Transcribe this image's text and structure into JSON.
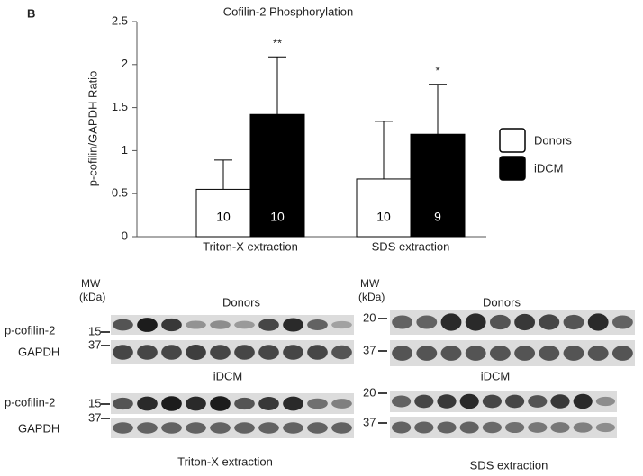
{
  "panel_label": "B",
  "chart_data": {
    "type": "bar",
    "title": "Cofilin-2 Phosphorylation",
    "y_label": "p-cofilin/GAPDH Ratio",
    "categories": [
      "Triton-X extraction",
      "SDS extraction"
    ],
    "series": [
      {
        "name": "Donors",
        "color": "#ffffff",
        "values": [
          0.55,
          0.67
        ],
        "errors": [
          0.34,
          0.67
        ],
        "sample_sizes": [
          10,
          10
        ]
      },
      {
        "name": "iDCM",
        "color": "#000000",
        "values": [
          1.42,
          1.19
        ],
        "errors": [
          0.67,
          0.58
        ],
        "sample_sizes": [
          10,
          9
        ],
        "significance": [
          "**",
          "*"
        ]
      }
    ],
    "ylim": [
      0,
      2.5
    ],
    "yticks": [
      0,
      0.5,
      1,
      1.5,
      2,
      2.5
    ],
    "legend": "right"
  },
  "blots": {
    "left": {
      "mw_label": [
        "MW",
        "(kDa)"
      ],
      "groups": [
        "Donors",
        "iDCM"
      ],
      "rows": [
        "p-cofilin-2",
        "GAPDH",
        "p-cofilin-2",
        "GAPDH"
      ],
      "markers": [
        15,
        37,
        15,
        37
      ],
      "caption": "Triton-X extraction"
    },
    "right": {
      "mw_label": [
        "MW",
        "(kDa)"
      ],
      "groups": [
        "Donors",
        "iDCM"
      ],
      "markers": [
        20,
        37,
        20,
        37
      ],
      "caption": "SDS extraction"
    }
  }
}
